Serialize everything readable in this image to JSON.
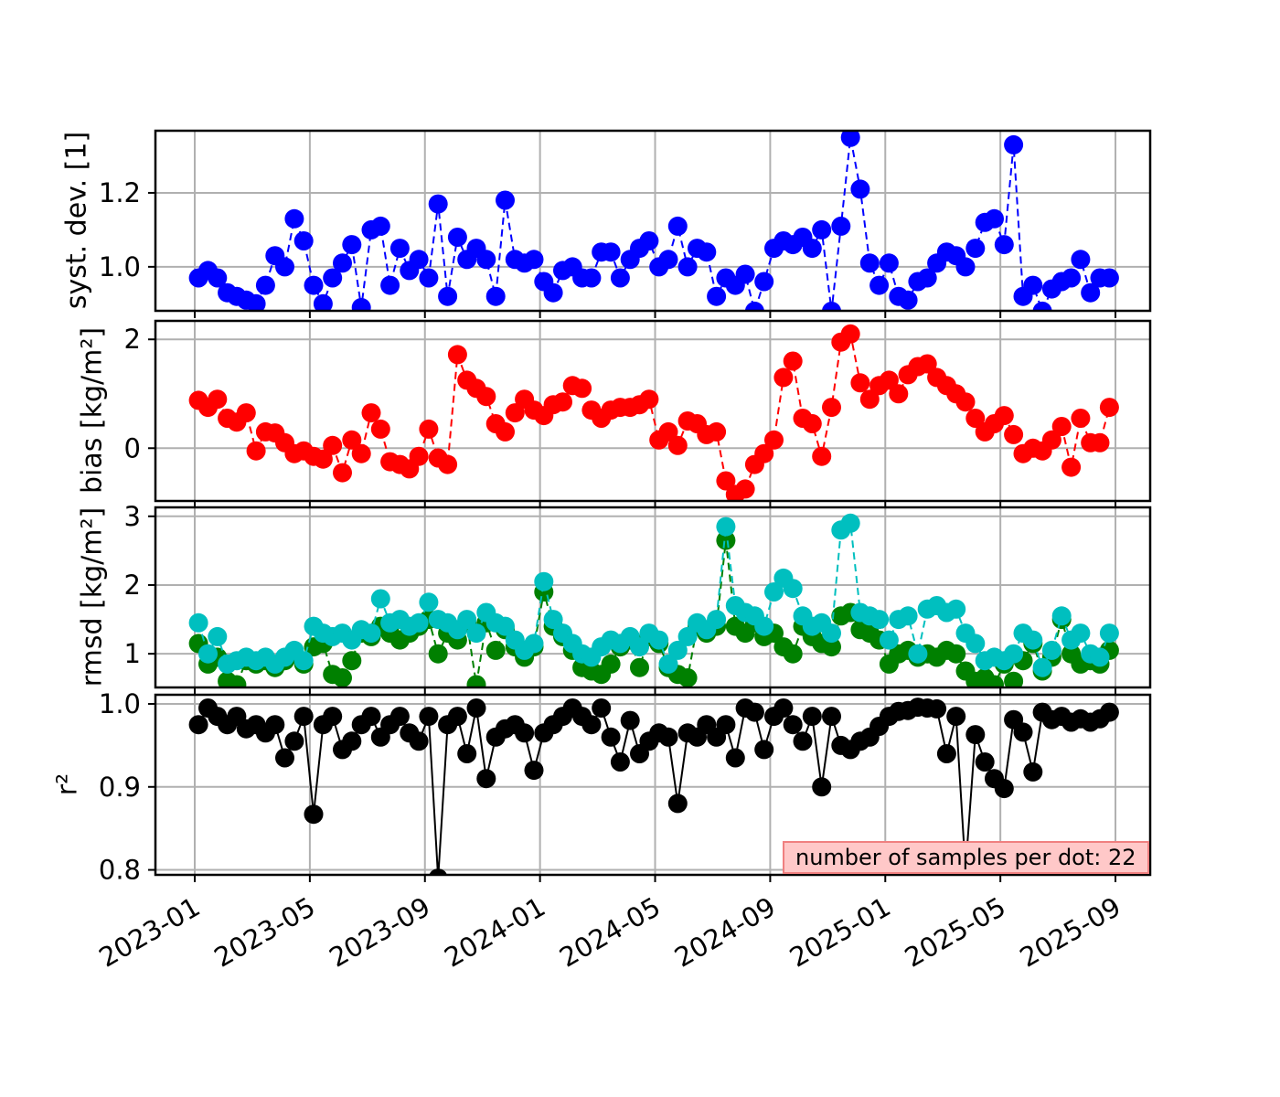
{
  "chart_data": {
    "type": "line",
    "title": "",
    "grid": true,
    "x_tick_labels": [
      "2023-01",
      "2023-05",
      "2023-09",
      "2024-01",
      "2024-05",
      "2024-09",
      "2025-01",
      "2025-05",
      "2025-09"
    ],
    "x_tick_months": [
      0,
      4,
      8,
      12,
      16,
      20,
      24,
      28,
      32
    ],
    "x_dates": [
      "2023-01-05",
      "2023-01-15",
      "2023-01-25",
      "2023-02-05",
      "2023-02-15",
      "2023-02-25",
      "2023-03-05",
      "2023-03-15",
      "2023-03-25",
      "2023-04-05",
      "2023-04-15",
      "2023-04-25",
      "2023-05-05",
      "2023-05-15",
      "2023-05-25",
      "2023-06-05",
      "2023-06-15",
      "2023-06-25",
      "2023-07-05",
      "2023-07-15",
      "2023-07-25",
      "2023-08-05",
      "2023-08-15",
      "2023-08-25",
      "2023-09-05",
      "2023-09-15",
      "2023-09-25",
      "2023-10-05",
      "2023-10-15",
      "2023-10-25",
      "2023-11-05",
      "2023-11-15",
      "2023-11-25",
      "2023-12-05",
      "2023-12-15",
      "2023-12-25",
      "2024-01-05",
      "2024-01-15",
      "2024-01-25",
      "2024-02-05",
      "2024-02-15",
      "2024-02-25",
      "2024-03-05",
      "2024-03-15",
      "2024-03-25",
      "2024-04-05",
      "2024-04-15",
      "2024-04-25",
      "2024-05-05",
      "2024-05-15",
      "2024-05-25",
      "2024-06-05",
      "2024-06-15",
      "2024-06-25",
      "2024-07-05",
      "2024-07-15",
      "2024-07-25",
      "2024-08-05",
      "2024-08-15",
      "2024-08-25",
      "2024-09-05",
      "2024-09-15",
      "2024-09-25",
      "2024-10-05",
      "2024-10-15",
      "2024-10-25",
      "2024-11-05",
      "2024-11-15",
      "2024-11-25",
      "2024-12-05",
      "2024-12-15",
      "2024-12-25",
      "2025-01-05",
      "2025-01-15",
      "2025-01-25",
      "2025-02-05",
      "2025-02-15",
      "2025-02-25",
      "2025-03-05",
      "2025-03-15",
      "2025-03-25",
      "2025-04-05",
      "2025-04-15",
      "2025-04-25",
      "2025-05-05",
      "2025-05-15",
      "2025-05-25",
      "2025-06-05",
      "2025-06-15",
      "2025-06-25",
      "2025-07-05",
      "2025-07-15",
      "2025-07-25",
      "2025-08-05",
      "2025-08-15",
      "2025-08-25"
    ],
    "panels": [
      {
        "name": "syst-dev",
        "ylabel": "syst. dev. [1]",
        "yticks": [
          1.0,
          1.2
        ],
        "ytick_labels": [
          "1.0",
          "1.2"
        ],
        "ylim": [
          0.881,
          1.368
        ],
        "series": [
          {
            "name": "syst-dev",
            "color": "#0000ff",
            "linestyle": "dashed",
            "values": [
              0.97,
              0.99,
              0.97,
              0.93,
              0.92,
              0.91,
              0.9,
              0.95,
              1.03,
              1.0,
              1.13,
              1.07,
              0.95,
              0.9,
              0.97,
              1.01,
              1.06,
              0.89,
              1.1,
              1.11,
              0.95,
              1.05,
              0.99,
              1.02,
              0.97,
              1.17,
              0.92,
              1.08,
              1.02,
              1.05,
              1.02,
              0.92,
              1.18,
              1.02,
              1.01,
              1.02,
              0.96,
              0.93,
              0.99,
              1.0,
              0.97,
              0.97,
              1.04,
              1.04,
              0.97,
              1.02,
              1.05,
              1.07,
              1.0,
              1.02,
              1.11,
              1.0,
              1.05,
              1.04,
              0.92,
              0.97,
              0.95,
              0.98,
              0.88,
              0.96,
              1.05,
              1.07,
              1.06,
              1.08,
              1.05,
              1.1,
              0.88,
              1.11,
              1.35,
              1.21,
              1.01,
              0.95,
              1.01,
              0.92,
              0.91,
              0.96,
              0.97,
              1.01,
              1.04,
              1.03,
              1.0,
              1.05,
              1.12,
              1.13,
              1.06,
              1.33,
              0.92,
              0.95,
              0.88,
              0.94,
              0.96,
              0.97,
              1.02,
              0.93,
              0.97,
              0.97
            ]
          }
        ]
      },
      {
        "name": "bias",
        "ylabel": "bias [kg/m²]",
        "yticks": [
          0,
          2
        ],
        "ytick_labels": [
          "0",
          "2"
        ],
        "ylim": [
          -0.97,
          2.34
        ],
        "series": [
          {
            "name": "bias",
            "color": "#ff0000",
            "linestyle": "dashed",
            "values": [
              0.88,
              0.75,
              0.9,
              0.55,
              0.48,
              0.65,
              -0.05,
              0.3,
              0.28,
              0.1,
              -0.1,
              -0.05,
              -0.15,
              -0.2,
              0.05,
              -0.45,
              0.15,
              -0.1,
              0.65,
              0.35,
              -0.25,
              -0.3,
              -0.38,
              -0.15,
              0.35,
              -0.18,
              -0.3,
              1.72,
              1.25,
              1.1,
              0.95,
              0.45,
              0.3,
              0.65,
              0.9,
              0.7,
              0.6,
              0.8,
              0.85,
              1.15,
              1.1,
              0.7,
              0.55,
              0.7,
              0.75,
              0.75,
              0.8,
              0.9,
              0.15,
              0.3,
              0.05,
              0.5,
              0.45,
              0.25,
              0.3,
              -0.6,
              -0.85,
              -0.75,
              -0.3,
              -0.1,
              0.15,
              1.3,
              1.6,
              0.55,
              0.45,
              -0.15,
              0.75,
              1.95,
              2.1,
              1.2,
              0.9,
              1.15,
              1.25,
              1.0,
              1.35,
              1.5,
              1.55,
              1.3,
              1.15,
              1.0,
              0.85,
              0.55,
              0.3,
              0.45,
              0.6,
              0.25,
              -0.1,
              0.0,
              -0.05,
              0.15,
              0.4,
              -0.35,
              0.55,
              0.1,
              0.1,
              0.75
            ]
          }
        ]
      },
      {
        "name": "rmsd",
        "ylabel": "rmsd [kg/m²]",
        "yticks": [
          1,
          2,
          3
        ],
        "ytick_labels": [
          "1",
          "2",
          "3"
        ],
        "ylim": [
          0.51,
          3.13
        ],
        "series": [
          {
            "name": "rmsd-green",
            "color": "#008000",
            "linestyle": "dashed",
            "values": [
              1.15,
              0.85,
              0.95,
              0.6,
              0.55,
              0.9,
              0.85,
              0.9,
              0.8,
              0.9,
              1.0,
              0.85,
              1.1,
              1.15,
              0.7,
              0.65,
              0.9,
              1.3,
              1.25,
              1.4,
              1.3,
              1.2,
              1.3,
              1.4,
              1.5,
              1.0,
              1.3,
              1.2,
              1.45,
              0.55,
              1.45,
              1.05,
              1.35,
              1.1,
              0.95,
              1.1,
              1.9,
              1.4,
              1.25,
              1.05,
              0.8,
              0.75,
              0.7,
              0.85,
              1.1,
              1.2,
              0.8,
              1.25,
              1.15,
              0.8,
              0.7,
              0.65,
              1.4,
              1.3,
              1.4,
              2.65,
              1.4,
              1.3,
              1.45,
              1.25,
              1.3,
              1.1,
              1.0,
              1.4,
              1.25,
              1.15,
              1.1,
              1.55,
              1.6,
              1.35,
              1.3,
              1.2,
              0.85,
              1.0,
              1.05,
              0.95,
              1.0,
              0.95,
              1.05,
              1.0,
              0.75,
              0.6,
              0.65,
              0.55,
              0.85,
              0.6,
              0.9,
              1.15,
              0.75,
              0.95,
              1.5,
              1.0,
              0.85,
              0.9,
              0.85,
              1.05
            ]
          },
          {
            "name": "rmsd-cyan",
            "color": "#00bfbf",
            "linestyle": "dashed",
            "values": [
              1.45,
              1.0,
              1.25,
              0.85,
              0.9,
              0.95,
              0.9,
              0.95,
              0.85,
              0.95,
              1.05,
              0.9,
              1.4,
              1.3,
              1.25,
              1.3,
              1.2,
              1.35,
              1.3,
              1.8,
              1.45,
              1.5,
              1.4,
              1.45,
              1.75,
              1.5,
              1.45,
              1.35,
              1.5,
              1.3,
              1.6,
              1.45,
              1.4,
              1.2,
              1.05,
              1.15,
              2.05,
              1.5,
              1.3,
              1.15,
              1.0,
              0.95,
              1.1,
              1.2,
              1.15,
              1.25,
              1.1,
              1.3,
              1.2,
              0.85,
              1.05,
              1.25,
              1.45,
              1.35,
              1.5,
              2.85,
              1.7,
              1.6,
              1.55,
              1.4,
              1.9,
              2.1,
              1.95,
              1.55,
              1.4,
              1.45,
              1.3,
              2.8,
              2.9,
              1.6,
              1.55,
              1.5,
              1.2,
              1.5,
              1.55,
              1.0,
              1.65,
              1.7,
              1.6,
              1.65,
              1.3,
              1.15,
              0.9,
              0.95,
              0.9,
              1.0,
              1.3,
              1.2,
              0.8,
              1.05,
              1.55,
              1.2,
              1.3,
              1.0,
              0.95,
              1.3
            ]
          }
        ]
      },
      {
        "name": "r-squared",
        "ylabel": "r²",
        "yticks": [
          0.8,
          0.9,
          1.0
        ],
        "ytick_labels": [
          "0.8",
          "0.9",
          "1.0"
        ],
        "ylim": [
          0.794,
          1.011
        ],
        "series": [
          {
            "name": "r-squared",
            "color": "#000000",
            "linestyle": "solid",
            "values": [
              0.975,
              0.995,
              0.985,
              0.975,
              0.985,
              0.97,
              0.975,
              0.965,
              0.975,
              0.935,
              0.955,
              0.985,
              0.867,
              0.975,
              0.985,
              0.945,
              0.955,
              0.975,
              0.985,
              0.96,
              0.975,
              0.985,
              0.965,
              0.955,
              0.985,
              0.79,
              0.975,
              0.985,
              0.94,
              0.995,
              0.91,
              0.96,
              0.97,
              0.975,
              0.965,
              0.92,
              0.965,
              0.975,
              0.985,
              0.995,
              0.985,
              0.975,
              0.995,
              0.96,
              0.93,
              0.98,
              0.94,
              0.955,
              0.965,
              0.96,
              0.88,
              0.965,
              0.96,
              0.975,
              0.96,
              0.975,
              0.935,
              0.995,
              0.99,
              0.945,
              0.985,
              0.995,
              0.975,
              0.955,
              0.985,
              0.9,
              0.985,
              0.95,
              0.945,
              0.955,
              0.96,
              0.973,
              0.985,
              0.991,
              0.992,
              0.996,
              0.995,
              0.994,
              0.94,
              0.985,
              0.8,
              0.963,
              0.93,
              0.91,
              0.898,
              0.981,
              0.966,
              0.918,
              0.99,
              0.981,
              0.985,
              0.978,
              0.982,
              0.978,
              0.982,
              0.99
            ]
          }
        ]
      }
    ],
    "annotation": {
      "text": "number of samples per dot: 22",
      "bg_color": "#ffc8c8",
      "border_color": "#f08080"
    },
    "colors": {
      "grid": "#b0b0b0",
      "axis": "#000000",
      "background": "#ffffff"
    }
  }
}
